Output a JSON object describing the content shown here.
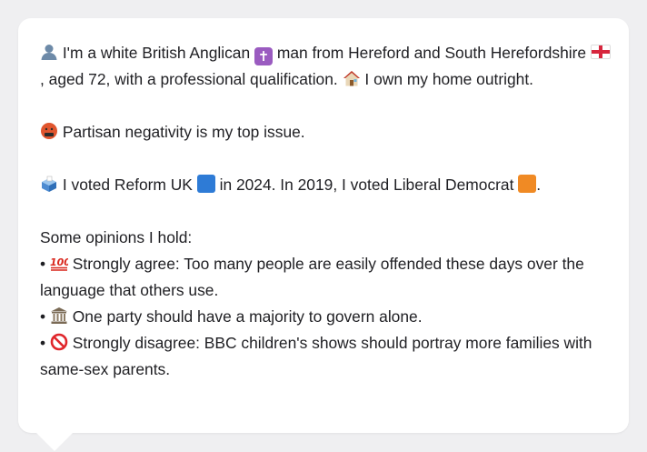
{
  "colors": {
    "page_background": "#efeff1",
    "card_background": "#ffffff",
    "text": "#1f1f23"
  },
  "intro": {
    "part1": "I'm a white British Anglican",
    "part2": "man from Hereford and South Herefordshire",
    "part3": ", aged 72, with a professional qualification.",
    "part4": "I own my home outright.",
    "icons": [
      "person-icon",
      "latin-cross-icon",
      "england-flag-icon",
      "house-icon"
    ]
  },
  "issue": {
    "text": "Partisan negativity is my top issue.",
    "icon": "swearing-face-icon"
  },
  "vote": {
    "part1": "I voted Reform UK",
    "part2": "in 2024. In 2019, I voted Liberal Democrat",
    "part3": ".",
    "icons": [
      "ballot-box-icon",
      "blue-square-icon",
      "orange-square-icon"
    ]
  },
  "opinions": {
    "heading": "Some opinions I hold:",
    "items": [
      {
        "bullet": "•",
        "icon": "hundred-points-icon",
        "text": "Strongly agree: Too many people are easily offended these days over the language that others use."
      },
      {
        "bullet": "•",
        "icon": "classical-building-icon",
        "text": "One party should have a majority to govern alone."
      },
      {
        "bullet": "•",
        "icon": "prohibited-icon",
        "text": "Strongly disagree: BBC children's shows should portray more families with same-sex parents."
      }
    ]
  }
}
